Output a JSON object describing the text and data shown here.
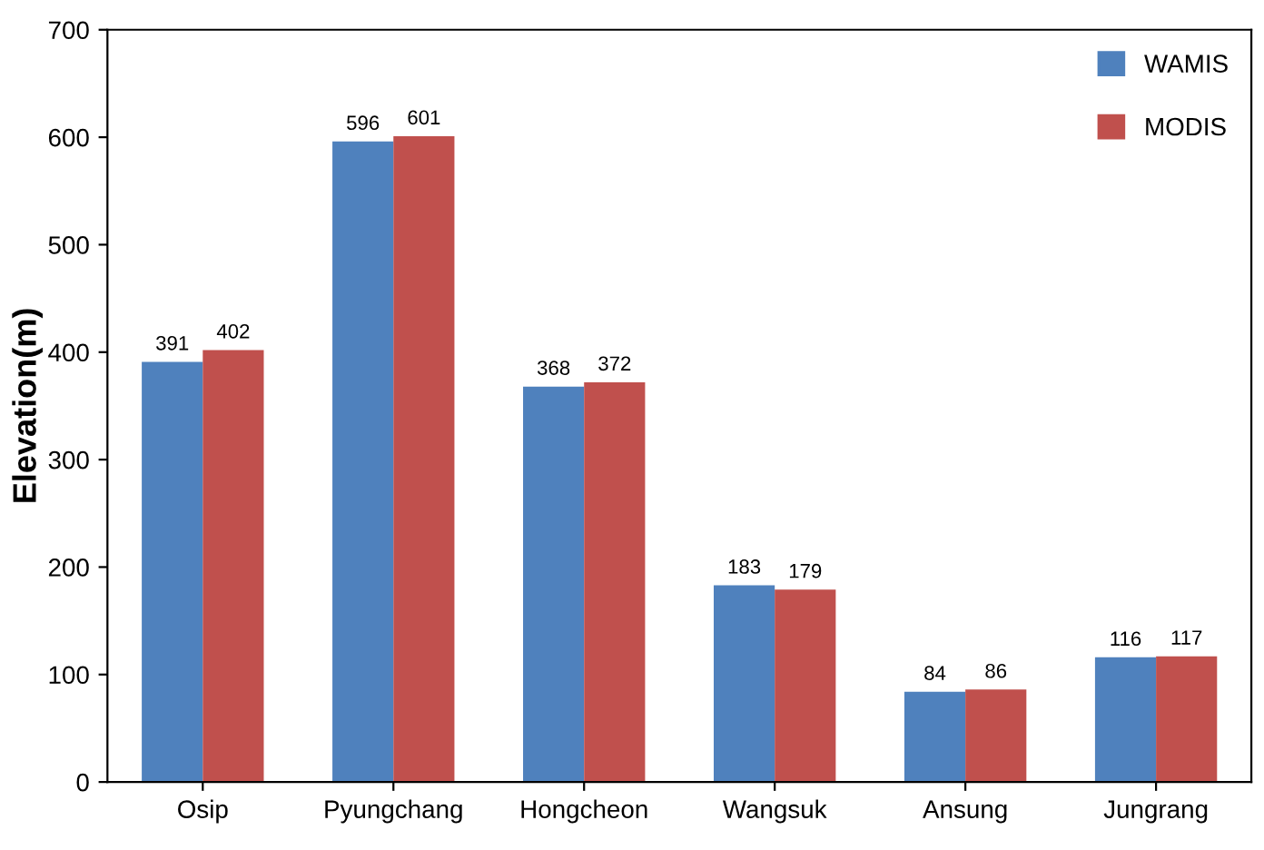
{
  "chart_data": {
    "type": "bar",
    "ylabel": "Elevation(m)",
    "categories": [
      "Osip",
      "Pyungchang",
      "Hongcheon",
      "Wangsuk",
      "Ansung",
      "Jungrang"
    ],
    "series": [
      {
        "name": "WAMIS",
        "color": "#4f81bd",
        "values": [
          391,
          596,
          368,
          183,
          84,
          116
        ]
      },
      {
        "name": "MODIS",
        "color": "#c0504d",
        "values": [
          402,
          601,
          372,
          179,
          86,
          117
        ]
      }
    ],
    "ylim": [
      0,
      700
    ],
    "yticks": [
      0,
      100,
      200,
      300,
      400,
      500,
      600,
      700
    ],
    "data_labels": true,
    "legend": "top right"
  }
}
